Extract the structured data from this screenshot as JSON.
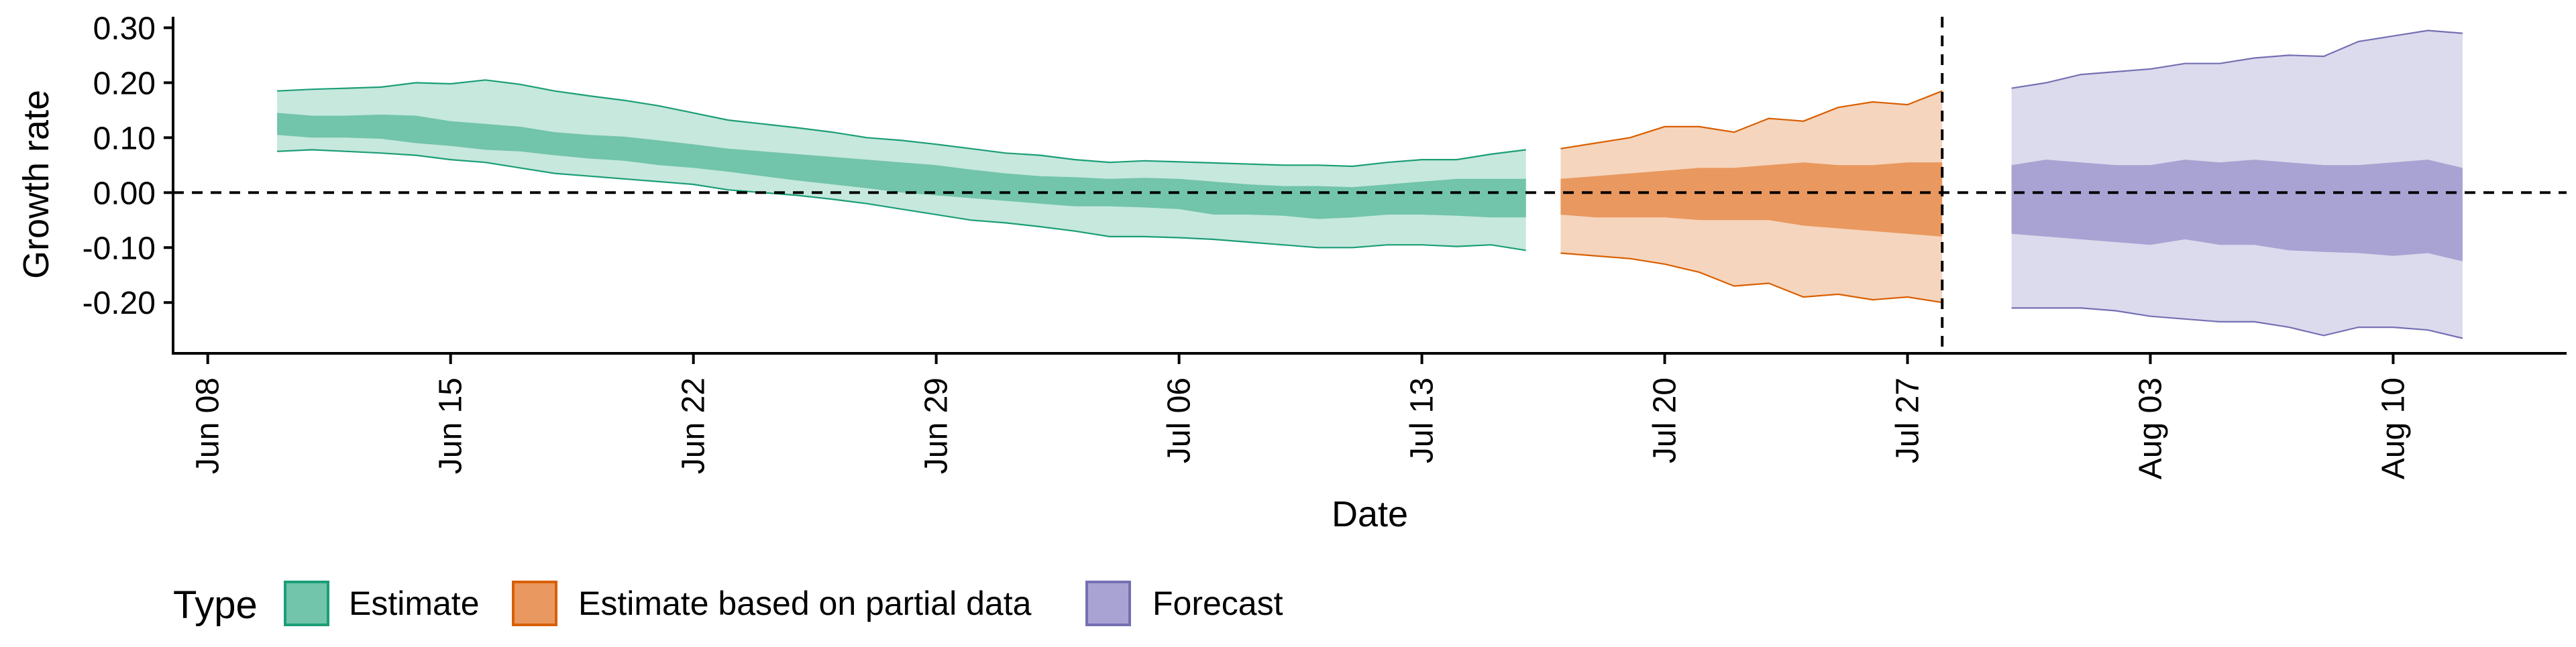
{
  "chart_data": {
    "type": "area",
    "xlabel": "Date",
    "ylabel": "Growth rate",
    "xlim": [
      "2020-06-07",
      "2020-08-15"
    ],
    "ylim": [
      -0.29,
      0.32
    ],
    "x_ticks": [
      "2020-06-08",
      "2020-06-15",
      "2020-06-22",
      "2020-06-29",
      "2020-07-06",
      "2020-07-13",
      "2020-07-20",
      "2020-07-27",
      "2020-08-03",
      "2020-08-10"
    ],
    "x_tick_labels": [
      "Jun 08",
      "Jun 15",
      "Jun 22",
      "Jun 29",
      "Jul 06",
      "Jul 13",
      "Jul 20",
      "Jul 27",
      "Aug 03",
      "Aug 10"
    ],
    "y_ticks": [
      -0.2,
      -0.1,
      0.0,
      0.1,
      0.2,
      0.3
    ],
    "y_tick_labels": [
      "-0.20",
      "-0.10",
      "0.00",
      "0.10",
      "0.20",
      "0.30"
    ],
    "reference_lines": {
      "horizontal_y": 0.0,
      "vertical_x": "2020-07-28",
      "style": "dashed"
    },
    "grid": false,
    "legend": {
      "title": "Type",
      "position": "bottom",
      "entries": [
        {
          "label": "Estimate",
          "fill": "#72c4aa",
          "stroke": "#1b9e77"
        },
        {
          "label": "Estimate based on partial data",
          "fill": "#e9985f",
          "stroke": "#d95f02"
        },
        {
          "label": "Forecast",
          "fill": "#a8a3d2",
          "stroke": "#7570b3"
        }
      ]
    },
    "series": [
      {
        "name": "Estimate",
        "band_colors": {
          "outer": "#c6e8dd",
          "inner": "#72c4aa",
          "edge": "#1b9e77"
        },
        "x": [
          "2020-06-10",
          "2020-06-11",
          "2020-06-12",
          "2020-06-13",
          "2020-06-14",
          "2020-06-15",
          "2020-06-16",
          "2020-06-17",
          "2020-06-18",
          "2020-06-19",
          "2020-06-20",
          "2020-06-21",
          "2020-06-22",
          "2020-06-23",
          "2020-06-24",
          "2020-06-25",
          "2020-06-26",
          "2020-06-27",
          "2020-06-28",
          "2020-06-29",
          "2020-06-30",
          "2020-07-01",
          "2020-07-02",
          "2020-07-03",
          "2020-07-04",
          "2020-07-05",
          "2020-07-06",
          "2020-07-07",
          "2020-07-08",
          "2020-07-09",
          "2020-07-10",
          "2020-07-11",
          "2020-07-12",
          "2020-07-13",
          "2020-07-14",
          "2020-07-15",
          "2020-07-16"
        ],
        "upper90": [
          0.185,
          0.188,
          0.19,
          0.192,
          0.2,
          0.198,
          0.205,
          0.197,
          0.185,
          0.176,
          0.168,
          0.158,
          0.145,
          0.132,
          0.125,
          0.118,
          0.11,
          0.1,
          0.095,
          0.088,
          0.08,
          0.072,
          0.068,
          0.06,
          0.055,
          0.058,
          0.056,
          0.054,
          0.052,
          0.05,
          0.05,
          0.048,
          0.055,
          0.06,
          0.06,
          0.07,
          0.078
        ],
        "upper50": [
          0.145,
          0.14,
          0.14,
          0.142,
          0.14,
          0.13,
          0.125,
          0.12,
          0.11,
          0.105,
          0.102,
          0.095,
          0.088,
          0.08,
          0.075,
          0.07,
          0.065,
          0.06,
          0.055,
          0.05,
          0.042,
          0.035,
          0.03,
          0.028,
          0.025,
          0.027,
          0.025,
          0.02,
          0.015,
          0.012,
          0.012,
          0.01,
          0.015,
          0.02,
          0.025,
          0.025,
          0.025
        ],
        "lower50": [
          0.105,
          0.1,
          0.1,
          0.098,
          0.09,
          0.085,
          0.078,
          0.075,
          0.068,
          0.062,
          0.058,
          0.05,
          0.045,
          0.038,
          0.03,
          0.022,
          0.015,
          0.008,
          0.0,
          -0.005,
          -0.01,
          -0.015,
          -0.02,
          -0.025,
          -0.025,
          -0.027,
          -0.03,
          -0.04,
          -0.04,
          -0.042,
          -0.048,
          -0.045,
          -0.04,
          -0.04,
          -0.042,
          -0.045,
          -0.045
        ],
        "lower90": [
          0.075,
          0.078,
          0.075,
          0.072,
          0.068,
          0.06,
          0.055,
          0.045,
          0.035,
          0.03,
          0.025,
          0.02,
          0.015,
          0.005,
          0.0,
          -0.005,
          -0.012,
          -0.02,
          -0.03,
          -0.04,
          -0.05,
          -0.055,
          -0.062,
          -0.07,
          -0.08,
          -0.08,
          -0.082,
          -0.085,
          -0.09,
          -0.095,
          -0.1,
          -0.1,
          -0.095,
          -0.095,
          -0.098,
          -0.095,
          -0.105
        ]
      },
      {
        "name": "Estimate based on partial data",
        "band_colors": {
          "outer": "#f5d5bd",
          "inner": "#e9985f",
          "edge": "#d95f02"
        },
        "x": [
          "2020-07-17",
          "2020-07-18",
          "2020-07-19",
          "2020-07-20",
          "2020-07-21",
          "2020-07-22",
          "2020-07-23",
          "2020-07-24",
          "2020-07-25",
          "2020-07-26",
          "2020-07-27",
          "2020-07-28"
        ],
        "upper90": [
          0.08,
          0.09,
          0.1,
          0.12,
          0.12,
          0.11,
          0.135,
          0.13,
          0.155,
          0.165,
          0.16,
          0.185
        ],
        "upper50": [
          0.025,
          0.03,
          0.035,
          0.04,
          0.045,
          0.045,
          0.05,
          0.055,
          0.05,
          0.05,
          0.055,
          0.055
        ],
        "lower50": [
          -0.04,
          -0.045,
          -0.045,
          -0.045,
          -0.05,
          -0.05,
          -0.05,
          -0.06,
          -0.065,
          -0.07,
          -0.075,
          -0.08
        ],
        "lower90": [
          -0.11,
          -0.115,
          -0.12,
          -0.13,
          -0.145,
          -0.17,
          -0.165,
          -0.19,
          -0.185,
          -0.195,
          -0.19,
          -0.2
        ]
      },
      {
        "name": "Forecast",
        "band_colors": {
          "outer": "#dcdaed",
          "inner": "#a8a3d2",
          "edge": "#7570b3"
        },
        "x": [
          "2020-07-30",
          "2020-07-31",
          "2020-08-01",
          "2020-08-02",
          "2020-08-03",
          "2020-08-04",
          "2020-08-05",
          "2020-08-06",
          "2020-08-07",
          "2020-08-08",
          "2020-08-09",
          "2020-08-10",
          "2020-08-11",
          "2020-08-12"
        ],
        "upper90": [
          0.19,
          0.2,
          0.215,
          0.22,
          0.225,
          0.235,
          0.235,
          0.245,
          0.25,
          0.248,
          0.275,
          0.285,
          0.295,
          0.29
        ],
        "upper50": [
          0.05,
          0.06,
          0.055,
          0.05,
          0.05,
          0.06,
          0.055,
          0.06,
          0.055,
          0.05,
          0.05,
          0.055,
          0.06,
          0.045
        ],
        "lower50": [
          -0.075,
          -0.08,
          -0.085,
          -0.09,
          -0.095,
          -0.085,
          -0.095,
          -0.095,
          -0.105,
          -0.108,
          -0.11,
          -0.115,
          -0.11,
          -0.125
        ],
        "lower90": [
          -0.21,
          -0.21,
          -0.21,
          -0.215,
          -0.225,
          -0.23,
          -0.235,
          -0.235,
          -0.245,
          -0.26,
          -0.245,
          -0.245,
          -0.25,
          -0.265
        ]
      }
    ]
  }
}
